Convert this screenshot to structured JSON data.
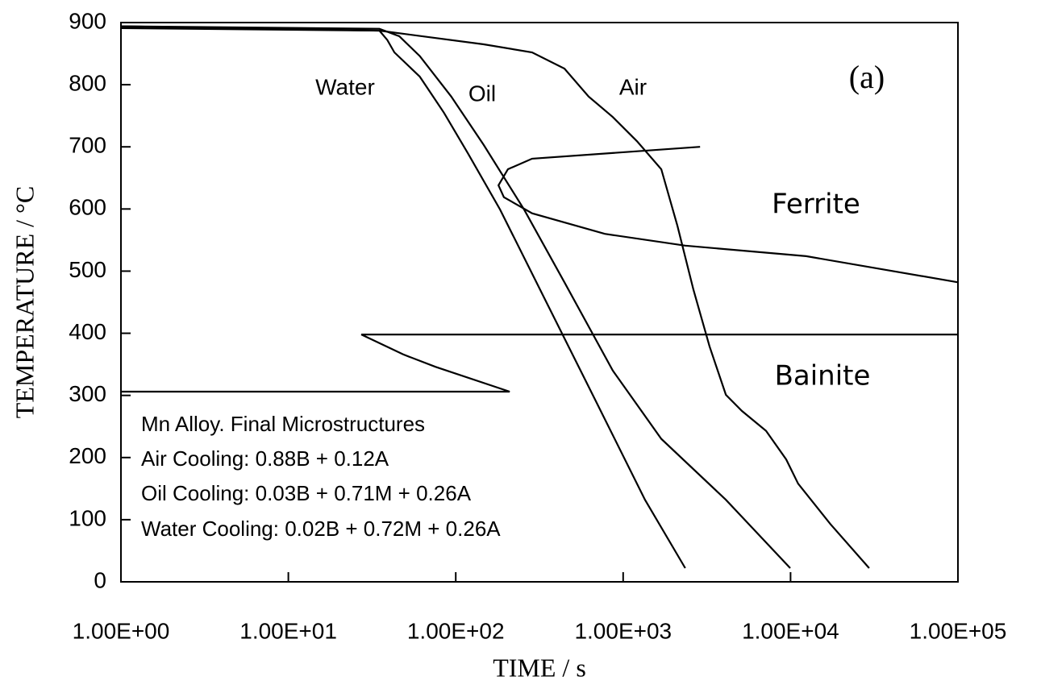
{
  "chart_data": {
    "type": "line",
    "xlabel": "TIME / s",
    "ylabel": "TEMPERATURE / °C",
    "xscale": "log",
    "xlim": [
      1,
      100000
    ],
    "ylim": [
      0,
      900
    ],
    "xticks": [
      {
        "value": 1,
        "label": "1.00E+00"
      },
      {
        "value": 10,
        "label": "1.00E+01"
      },
      {
        "value": 100,
        "label": "1.00E+02"
      },
      {
        "value": 1000,
        "label": "1.00E+03"
      },
      {
        "value": 10000,
        "label": "1.00E+04"
      },
      {
        "value": 100000,
        "label": "1.00E+05"
      }
    ],
    "yticks": [
      0,
      100,
      200,
      300,
      400,
      500,
      600,
      700,
      800,
      900
    ],
    "series": [
      {
        "name": "Water",
        "color": "#000000",
        "x": [
          1,
          35,
          39,
          43,
          61,
          85,
          118,
          184,
          357,
          695,
          1350,
          2350
        ],
        "values": [
          891,
          887,
          872,
          852,
          813,
          755,
          690,
          599,
          444,
          288,
          132,
          22
        ]
      },
      {
        "name": "Oil",
        "color": "#000000",
        "x": [
          1,
          35,
          46,
          61,
          94,
          147,
          256,
          446,
          867,
          1690,
          4110,
          9960
        ],
        "values": [
          894,
          890,
          878,
          846,
          781,
          703,
          599,
          482,
          340,
          230,
          132,
          22
        ]
      },
      {
        "name": "Air",
        "color": "#000000",
        "x": [
          1,
          35,
          147,
          286,
          446,
          622,
          867,
          1210,
          1690,
          2110,
          2630,
          3280,
          4110,
          5120,
          7140,
          9420,
          11100,
          17300,
          29500
        ],
        "values": [
          894,
          887,
          865,
          852,
          826,
          781,
          748,
          709,
          664,
          573,
          470,
          379,
          301,
          275,
          243,
          197,
          158,
          93,
          22
        ]
      },
      {
        "name": "Ferrite",
        "color": "#000000",
        "x": [
          2880,
          286,
          205,
          180,
          194,
          286,
          777,
          2350,
          12400,
          100000
        ],
        "values": [
          700,
          681,
          664,
          638,
          619,
          593,
          560,
          541,
          524,
          482
        ]
      },
      {
        "name": "Bainite",
        "color": "#000000",
        "x": [
          100000,
          27.3,
          48.5,
          75.6,
          210,
          1
        ],
        "values": [
          398,
          398,
          366,
          346,
          306,
          306
        ]
      }
    ],
    "annotations": [
      "(a)",
      "Mn Alloy. Final Microstructures",
      "Air Cooling: 0.88B + 0.12A",
      "Oil Cooling: 0.03B + 0.71M + 0.26A",
      "Water Cooling: 0.02B + 0.72M + 0.26A"
    ]
  }
}
